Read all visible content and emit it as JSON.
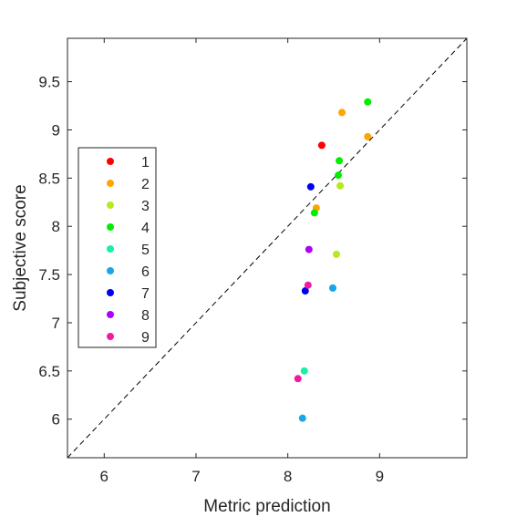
{
  "chart_data": {
    "type": "scatter",
    "title": "",
    "xlabel": "Metric prediction",
    "ylabel": "Subjective score",
    "xlim": [
      5.6,
      9.95
    ],
    "ylim": [
      5.6,
      9.95
    ],
    "xticks": [
      "6",
      "7",
      "8",
      "9"
    ],
    "yticks": [
      "6",
      "6.5",
      "7",
      "7.5",
      "8",
      "8.5",
      "9",
      "9.5"
    ],
    "grid": false,
    "legend": "left",
    "reference_line": "y = x (dashed)",
    "series": [
      {
        "name": "1",
        "color": "#ff0000",
        "points": [
          [
            8.37,
            8.84
          ]
        ]
      },
      {
        "name": "2",
        "color": "#ffa500",
        "points": [
          [
            8.59,
            9.18
          ],
          [
            8.87,
            8.93
          ],
          [
            8.31,
            8.19
          ]
        ]
      },
      {
        "name": "3",
        "color": "#b5ea1e",
        "points": [
          [
            8.57,
            8.42
          ],
          [
            8.53,
            7.71
          ]
        ]
      },
      {
        "name": "4",
        "color": "#00ee00",
        "points": [
          [
            8.87,
            9.29
          ],
          [
            8.56,
            8.68
          ],
          [
            8.55,
            8.53
          ],
          [
            8.29,
            8.14
          ]
        ]
      },
      {
        "name": "5",
        "color": "#19f0a5",
        "points": [
          [
            8.18,
            6.5
          ]
        ]
      },
      {
        "name": "6",
        "color": "#1aa5e6",
        "points": [
          [
            8.49,
            7.36
          ],
          [
            8.16,
            6.01
          ]
        ]
      },
      {
        "name": "7",
        "color": "#0000f0",
        "points": [
          [
            8.25,
            8.41
          ],
          [
            8.19,
            7.33
          ]
        ]
      },
      {
        "name": "8",
        "color": "#aa00ff",
        "points": [
          [
            8.23,
            7.76
          ]
        ]
      },
      {
        "name": "9",
        "color": "#f01aa5",
        "points": [
          [
            8.22,
            7.39
          ],
          [
            8.11,
            6.42
          ]
        ]
      }
    ]
  }
}
